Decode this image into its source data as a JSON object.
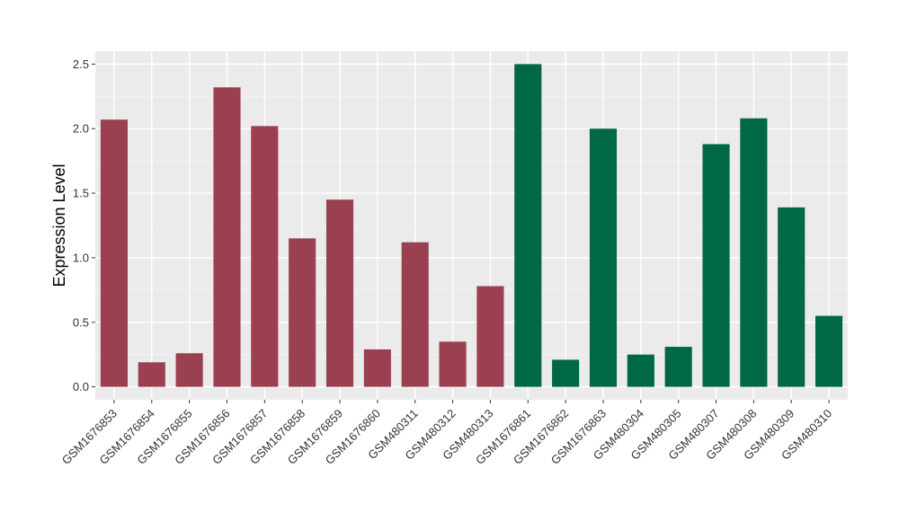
{
  "chart_data": {
    "type": "bar",
    "ylabel": "Expression Level",
    "xlabel": "",
    "ylim": [
      -0.1,
      2.6
    ],
    "yticks": [
      "0.0",
      "0.5",
      "1.0",
      "1.5",
      "2.0",
      "2.5"
    ],
    "grid": true,
    "panel_background": "#EBEBEB",
    "group_colors": [
      "#9B4050",
      "#006846"
    ],
    "categories": [
      "GSM1676853",
      "GSM1676854",
      "GSM1676855",
      "GSM1676856",
      "GSM1676857",
      "GSM1676858",
      "GSM1676859",
      "GSM1676860",
      "GSM480311",
      "GSM480312",
      "GSM480313",
      "GSM1676861",
      "GSM1676862",
      "GSM1676863",
      "GSM480304",
      "GSM480305",
      "GSM480307",
      "GSM480308",
      "GSM480309",
      "GSM480310"
    ],
    "values": [
      2.07,
      0.19,
      0.26,
      2.32,
      2.02,
      1.15,
      1.45,
      0.29,
      1.12,
      0.35,
      0.78,
      2.5,
      0.21,
      2.0,
      0.25,
      0.31,
      1.88,
      2.08,
      1.39,
      0.55
    ],
    "groups": [
      0,
      0,
      0,
      0,
      0,
      0,
      0,
      0,
      0,
      0,
      0,
      1,
      1,
      1,
      1,
      1,
      1,
      1,
      1,
      1
    ]
  }
}
